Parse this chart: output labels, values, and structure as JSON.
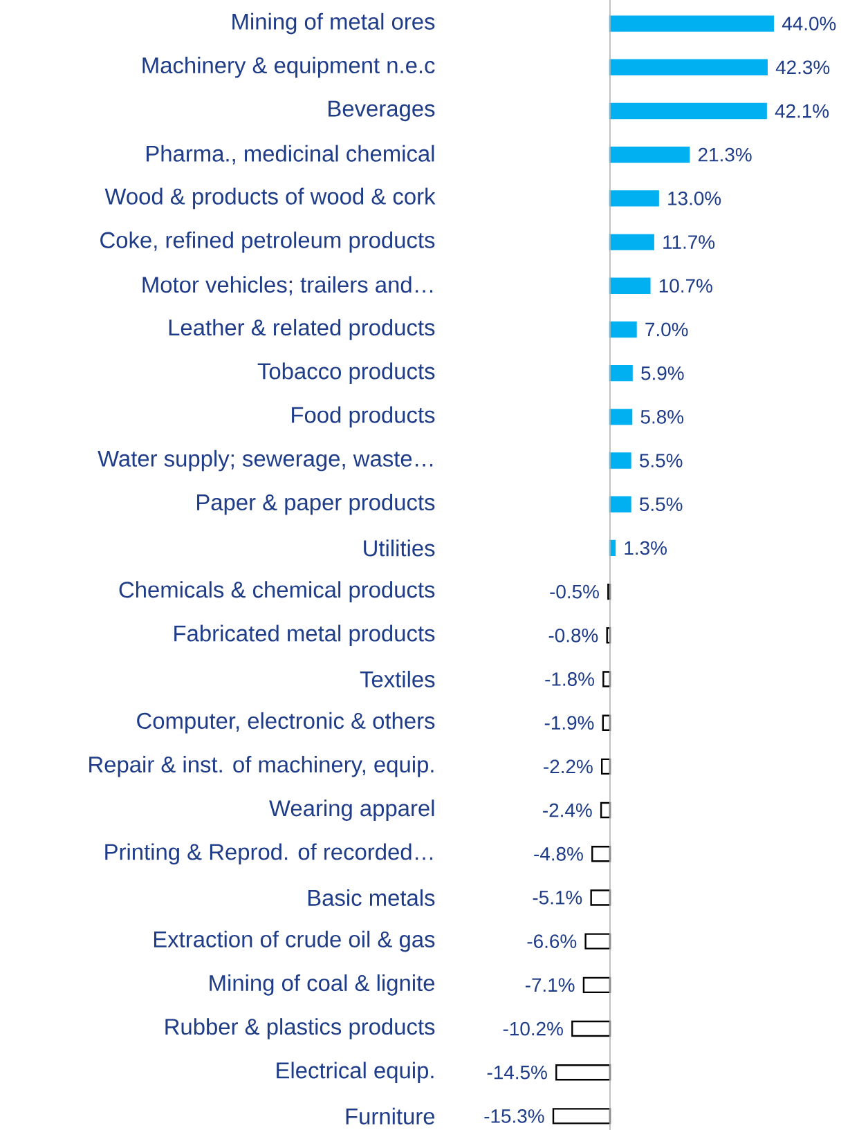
{
  "chart_data": {
    "type": "bar",
    "orientation": "horizontal",
    "value_labels": [
      "44.0%",
      "42.3%",
      "42.1%",
      "21.3%",
      "13.0%",
      "11.7%",
      "10.7%",
      "7.0%",
      "5.9%",
      "5.8%",
      "5.5%",
      "5.5%",
      "1.3%",
      "-0.5%",
      "-0.8%",
      "-1.8%",
      "-1.9%",
      "-2.2%",
      "-2.4%",
      "-4.8%",
      "-5.1%",
      "-6.6%",
      "-7.1%",
      "-10.2%",
      "-14.5%",
      "-15.3%"
    ],
    "categories": [
      "Mining of metal ores",
      "Machinery & equipment n.e.c",
      "Beverages",
      "Pharma., medicinal chemical",
      "Wood & products of wood & cork",
      "Coke, refined petroleum products",
      "Motor vehicles; trailers and…",
      "Leather & related products",
      "Tobacco products",
      "Food products",
      "Water supply; sewerage, waste…",
      "Paper & paper products",
      "Utilities",
      "Chemicals & chemical products",
      "Fabricated metal products",
      "Textiles",
      "Computer, electronic & others",
      "Repair & inst. of machinery, equip.",
      "Wearing apparel",
      "Printing & Reprod. of recorded…",
      "Basic metals",
      "Extraction of crude oil & gas",
      "Mining of coal & lignite",
      "Rubber & plastics products",
      "Electrical equip.",
      "Furniture"
    ],
    "values": [
      44.0,
      42.3,
      42.1,
      21.3,
      13.0,
      11.7,
      10.7,
      7.0,
      5.9,
      5.8,
      5.5,
      5.5,
      1.3,
      -0.5,
      -0.8,
      -1.8,
      -1.9,
      -2.2,
      -2.4,
      -4.8,
      -5.1,
      -6.6,
      -7.1,
      -10.2,
      -14.5,
      -15.3
    ],
    "colors": [
      "#00b0f0",
      "#00b0f0",
      "#00b0f0",
      "#00b0f0",
      "#00b0f0",
      "#00b0f0",
      "#00b0f0",
      "#00b0f0",
      "#00b0f0",
      "#00b0f0",
      "#00b0f0",
      "#00b0f0",
      "#00b0f0",
      "#ffffff",
      "#ffffff",
      "#ffffff",
      "#ffffff",
      "#ffffff",
      "#ffffff",
      "#ffffff",
      "#ffffff",
      "#ffffff",
      "#ffffff",
      "#ffffff",
      "#ffffff",
      "#ffffff"
    ]
  }
}
